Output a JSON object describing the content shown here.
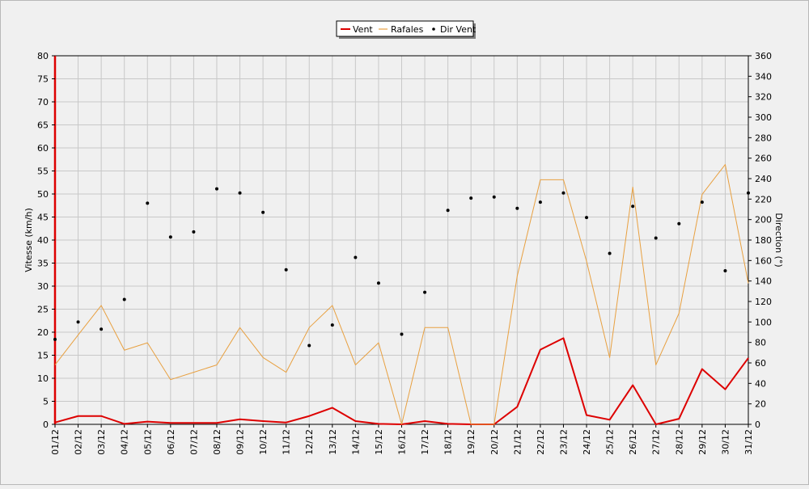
{
  "chart_data": {
    "type": "line",
    "categories": [
      "01/12",
      "02/12",
      "03/12",
      "04/12",
      "05/12",
      "06/12",
      "07/12",
      "08/12",
      "09/12",
      "10/12",
      "11/12",
      "12/12",
      "13/12",
      "14/12",
      "15/12",
      "16/12",
      "17/12",
      "18/12",
      "19/12",
      "20/12",
      "21/12",
      "22/12",
      "23/12",
      "24/12",
      "25/12",
      "26/12",
      "27/12",
      "28/12",
      "29/12",
      "30/12",
      "31/12"
    ],
    "ylabel": "Vitesse (km/h)",
    "ylim": [
      0,
      80
    ],
    "yticks": [
      0,
      5,
      10,
      15,
      20,
      25,
      30,
      35,
      40,
      45,
      50,
      55,
      60,
      65,
      70,
      75,
      80
    ],
    "y2label": "Direction (°)",
    "y2lim": [
      0,
      360
    ],
    "y2ticks": [
      0,
      20,
      40,
      60,
      80,
      100,
      120,
      140,
      160,
      180,
      200,
      220,
      240,
      260,
      280,
      300,
      320,
      340,
      360
    ],
    "grid": true,
    "legend_position": "top-center",
    "series": [
      {
        "name": "Vent",
        "color": "#dd0000",
        "style": "line",
        "axis": "left",
        "values": [
          0.4,
          1.8,
          1.8,
          0.1,
          0.6,
          0.3,
          0.3,
          0.3,
          1.1,
          0.7,
          0.4,
          1.8,
          3.6,
          0.7,
          0.1,
          0.0,
          0.7,
          0.1,
          0.0,
          0.0,
          3.8,
          16.2,
          18.7,
          2.0,
          1.0,
          8.5,
          0.0,
          1.2,
          12.0,
          7.6,
          14.4
        ]
      },
      {
        "name": "Rafales",
        "color": "#e8a040",
        "style": "line",
        "axis": "left",
        "values": [
          12.9,
          19.4,
          25.8,
          16.1,
          17.7,
          9.7,
          11.3,
          12.9,
          21.0,
          14.5,
          11.3,
          21.0,
          25.8,
          12.9,
          17.7,
          0.0,
          21.0,
          21.0,
          0.0,
          0.0,
          32.2,
          53.1,
          53.1,
          35.4,
          14.5,
          51.5,
          12.9,
          24.1,
          49.9,
          56.4,
          30.6
        ]
      },
      {
        "name": "Dir Vent",
        "color": "#000000",
        "style": "points",
        "axis": "right",
        "values": [
          83,
          100,
          93,
          122,
          216,
          183,
          188,
          230,
          226,
          207,
          151,
          77,
          97,
          163,
          138,
          88,
          129,
          209,
          221,
          222,
          211,
          217,
          226,
          202,
          167,
          213,
          182,
          196,
          217,
          150,
          226
        ]
      }
    ]
  }
}
